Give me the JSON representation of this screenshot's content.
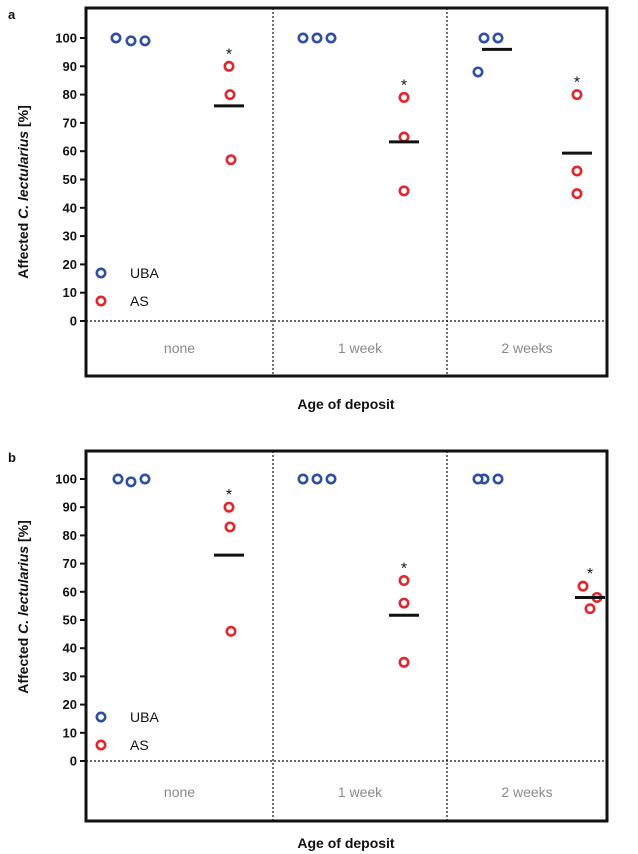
{
  "chart_data": [
    {
      "type": "scatter",
      "panel_label": "a",
      "xlabel": "Age of deposit",
      "ylabel_parts": [
        "Affected ",
        "C. lectularius",
        " [%]"
      ],
      "ylim": [
        0,
        105
      ],
      "yticks": [
        0,
        10,
        20,
        30,
        40,
        50,
        60,
        70,
        80,
        90,
        100
      ],
      "categories": [
        "none",
        "1 week",
        "2 weeks"
      ],
      "legend_position": "lower-left",
      "series": [
        {
          "name": "UBA",
          "color": "#2f4fa2",
          "values": [
            [
              100,
              99,
              99
            ],
            [
              100,
              100,
              100
            ],
            [
              100,
              100,
              88
            ]
          ],
          "means": [
            null,
            null,
            96
          ]
        },
        {
          "name": "AS",
          "color": "#e3262d",
          "values": [
            [
              90,
              80,
              57
            ],
            [
              79,
              65,
              46
            ],
            [
              80,
              53,
              45
            ]
          ],
          "means": [
            76,
            63.3,
            59.3
          ]
        }
      ],
      "annotations": [
        "*",
        "*",
        "*"
      ]
    },
    {
      "type": "scatter",
      "panel_label": "b",
      "xlabel": "Age of deposit",
      "ylabel_parts": [
        "Affected ",
        "C. lectularius",
        " [%]"
      ],
      "ylim": [
        0,
        105
      ],
      "yticks": [
        0,
        10,
        20,
        30,
        40,
        50,
        60,
        70,
        80,
        90,
        100
      ],
      "categories": [
        "none",
        "1 week",
        "2 weeks"
      ],
      "legend_position": "lower-left",
      "series": [
        {
          "name": "UBA",
          "color": "#2f4fa2",
          "values": [
            [
              100,
              99,
              100
            ],
            [
              100,
              100,
              100
            ],
            [
              100,
              100,
              100
            ]
          ],
          "means": [
            null,
            null,
            null
          ]
        },
        {
          "name": "AS",
          "color": "#e3262d",
          "values": [
            [
              90,
              83,
              46
            ],
            [
              64,
              56,
              35
            ],
            [
              62,
              58,
              54
            ]
          ],
          "means": [
            73,
            51.7,
            58
          ]
        }
      ],
      "annotations": [
        "*",
        "*",
        "*"
      ]
    }
  ]
}
